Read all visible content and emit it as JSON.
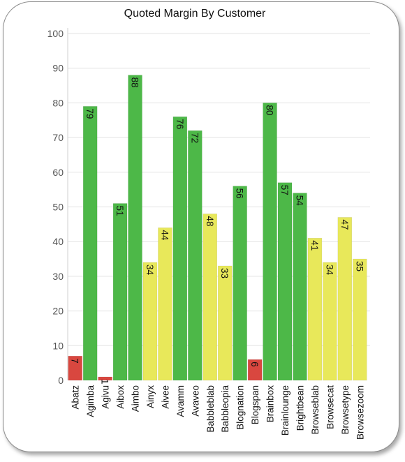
{
  "chart_data": {
    "type": "bar",
    "title": "Quoted Margin By Customer",
    "xlabel": "",
    "ylabel": "",
    "ylim": [
      0,
      100
    ],
    "yticks": [
      0,
      10,
      20,
      30,
      40,
      50,
      60,
      70,
      80,
      90,
      100
    ],
    "grid": true,
    "legend": "none",
    "categories": [
      "Abatz",
      "Agimba",
      "Agivu",
      "Aibox",
      "Aimbo",
      "Ainyx",
      "Aivee",
      "Avamm",
      "Avaveo",
      "Babbleblab",
      "Babbleopia",
      "Blognation",
      "Blogspan",
      "Brainbox",
      "Brainlounge",
      "Brightbean",
      "Browseblab",
      "Browsecat",
      "Browsetype",
      "Browsezoom"
    ],
    "values": [
      7,
      79,
      1,
      51,
      88,
      34,
      44,
      76,
      72,
      48,
      33,
      56,
      6,
      80,
      57,
      54,
      41,
      34,
      47,
      35
    ],
    "colors": {
      "low": "#d9473f",
      "mid": "#e8e85a",
      "high": "#4db848"
    },
    "color_thresholds": {
      "low_below": 10,
      "high_from": 50
    }
  }
}
